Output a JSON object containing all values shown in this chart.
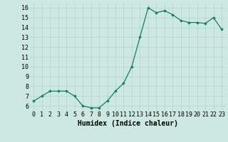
{
  "x": [
    0,
    1,
    2,
    3,
    4,
    5,
    6,
    7,
    8,
    9,
    10,
    11,
    12,
    13,
    14,
    15,
    16,
    17,
    18,
    19,
    20,
    21,
    22,
    23
  ],
  "y": [
    6.5,
    7.0,
    7.5,
    7.5,
    7.5,
    7.0,
    6.0,
    5.8,
    5.8,
    6.5,
    7.5,
    8.3,
    10.0,
    13.0,
    16.0,
    15.5,
    15.7,
    15.3,
    14.7,
    14.5,
    14.5,
    14.4,
    15.0,
    13.8
  ],
  "line_color": "#1a7a6a",
  "marker": "D",
  "marker_size": 1.8,
  "line_width": 0.9,
  "xlabel": "Humidex (Indice chaleur)",
  "xlim": [
    -0.5,
    23.5
  ],
  "ylim": [
    5.5,
    16.5
  ],
  "yticks": [
    6,
    7,
    8,
    9,
    10,
    11,
    12,
    13,
    14,
    15,
    16
  ],
  "xticks": [
    0,
    1,
    2,
    3,
    4,
    5,
    6,
    7,
    8,
    9,
    10,
    11,
    12,
    13,
    14,
    15,
    16,
    17,
    18,
    19,
    20,
    21,
    22,
    23
  ],
  "grid_color": "#b0d4cc",
  "bg_color": "#cce8e0",
  "xlabel_fontsize": 7.0,
  "tick_fontsize": 6.0,
  "title": ""
}
